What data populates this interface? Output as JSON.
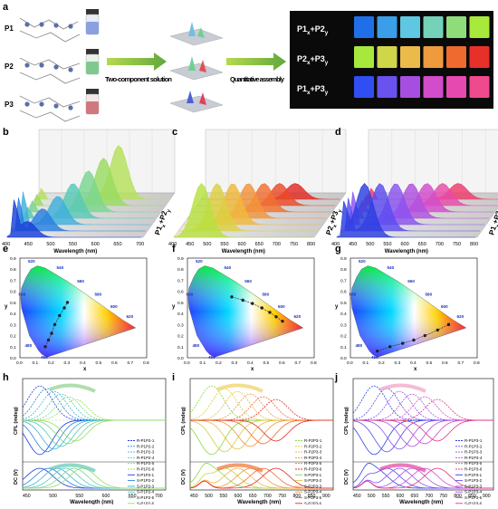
{
  "panel_letters": {
    "a": "a",
    "b": "b",
    "c": "c",
    "d": "d",
    "e": "e",
    "f": "f",
    "g": "g",
    "h": "h",
    "i": "i",
    "j": "j"
  },
  "panel_a": {
    "p1": "P1",
    "p2": "P2",
    "p3": "P3",
    "step1": "Two-component solution",
    "step2": "Quantitative assembly",
    "grid_rows": [
      {
        "label_main": "P1",
        "label_sub1": "x",
        "label_plus": "+P2",
        "label_sub2": "y",
        "colors": [
          "#1e6fe8",
          "#3a9ee8",
          "#5fc7e2",
          "#74d2b8",
          "#8fdc7a",
          "#a8ea3c"
        ]
      },
      {
        "label_main": "P2",
        "label_sub1": "x",
        "label_plus": "+P3",
        "label_sub2": "y",
        "colors": [
          "#a8e83c",
          "#cfd64a",
          "#eabb4a",
          "#f09a3e",
          "#ef6a2e",
          "#e8302a"
        ]
      },
      {
        "label_main": "P1",
        "label_sub1": "x",
        "label_plus": "+P3",
        "label_sub2": "y",
        "colors": [
          "#2f4ff2",
          "#6a52ef",
          "#a64ee0",
          "#d24ccc",
          "#e64ab0",
          "#f04a8e"
        ]
      }
    ]
  },
  "spectra_3d": [
    {
      "xlabel": "Wavelength (nm)",
      "ticks": [
        "400",
        "450",
        "500",
        "550",
        "600",
        "650",
        "700"
      ],
      "side_main": "P1",
      "side_sub1": "x",
      "side_plus": "+P2",
      "side_sub2": "y",
      "colors": [
        "#1a3fd8",
        "#2a7fe0",
        "#3fb0dc",
        "#58c9b6",
        "#7ad690",
        "#98dc60",
        "#b6e05a"
      ]
    },
    {
      "xlabel": "Wavelength (nm)",
      "ticks": [
        "400",
        "450",
        "500",
        "550",
        "600",
        "650",
        "700",
        "750",
        "800"
      ],
      "side_main": "P2",
      "side_sub1": "x",
      "side_plus": "+P3",
      "side_sub2": "y",
      "colors": [
        "#b8e040",
        "#dcd040",
        "#f0b83c",
        "#f4943a",
        "#f27030",
        "#ec4a2a",
        "#e02a24"
      ]
    },
    {
      "xlabel": "Wavelength (nm)",
      "ticks": [
        "400",
        "450",
        "500",
        "550",
        "600",
        "650",
        "700",
        "750",
        "800"
      ],
      "side_main": "P1",
      "side_sub1": "x",
      "side_plus": "+P3",
      "side_sub2": "y",
      "colors": [
        "#2a3ee0",
        "#5a4cf0",
        "#8a52f0",
        "#b050e0",
        "#d44ccc",
        "#e84aa8",
        "#ee3a6a"
      ]
    }
  ],
  "cie": {
    "xlabel": "x",
    "ylabel": "y",
    "xticks": [
      "0.0",
      "0.1",
      "0.2",
      "0.3",
      "0.4",
      "0.5",
      "0.6",
      "0.7",
      "0.8"
    ],
    "yticks": [
      "0.0",
      "0.1",
      "0.2",
      "0.3",
      "0.4",
      "0.5",
      "0.6",
      "0.7",
      "0.8",
      "0.9"
    ],
    "wl_labels": [
      "520",
      "540",
      "560",
      "580",
      "600",
      "620",
      "500",
      "480",
      "460"
    ],
    "paths": [
      [
        [
          0.16,
          0.1
        ],
        [
          0.18,
          0.16
        ],
        [
          0.2,
          0.22
        ],
        [
          0.22,
          0.3
        ],
        [
          0.25,
          0.38
        ],
        [
          0.28,
          0.45
        ],
        [
          0.3,
          0.5
        ]
      ],
      [
        [
          0.28,
          0.55
        ],
        [
          0.35,
          0.52
        ],
        [
          0.41,
          0.49
        ],
        [
          0.47,
          0.45
        ],
        [
          0.52,
          0.41
        ],
        [
          0.56,
          0.37
        ],
        [
          0.6,
          0.33
        ]
      ],
      [
        [
          0.17,
          0.06
        ],
        [
          0.25,
          0.1
        ],
        [
          0.33,
          0.13
        ],
        [
          0.4,
          0.16
        ],
        [
          0.47,
          0.2
        ],
        [
          0.55,
          0.25
        ],
        [
          0.62,
          0.3
        ]
      ]
    ]
  },
  "cpl_panels": [
    {
      "cpl_label": "CPL (mdeg)",
      "dc_label": "DC (V)",
      "xlabel": "Wavelength (nm)",
      "xticks": [
        "450",
        "500",
        "550",
        "600",
        "650",
        "700"
      ],
      "legend": [
        "R-P1P2-1",
        "R-P1P2-2",
        "R-P1P2-3",
        "R-P1P2-4",
        "R-P1P2-5",
        "R-P1P2-6",
        "S-P1P2-1",
        "S-P1P2-2",
        "S-P1P2-3",
        "S-P1P2-4",
        "S-P1P2-5",
        "S-P1P2-6"
      ],
      "colors": [
        "#1a3fd8",
        "#2a7fe0",
        "#3fb0dc",
        "#58c9b6",
        "#7ad690",
        "#98dc60",
        "#1a3fd8",
        "#2a7fe0",
        "#3fb0dc",
        "#58c9b6",
        "#7ad690",
        "#98dc60"
      ],
      "arrow_colors": [
        "#8fd08a",
        "#60c8b0"
      ]
    },
    {
      "cpl_label": "CPL (mdeg)",
      "dc_label": "DC (V)",
      "xlabel": "Wavelength (nm)",
      "xticks": [
        "450",
        "500",
        "550",
        "600",
        "650",
        "700",
        "750",
        "800",
        "850",
        "900"
      ],
      "legend": [
        "R-P2P3-1",
        "R-P2P3-2",
        "R-P2P3-3",
        "R-P2P3-4",
        "R-P2P3-5",
        "R-P2P3-6",
        "S-P2P3-1",
        "S-P2P3-2",
        "S-P2P3-3",
        "S-P2P3-4",
        "S-P2P3-5",
        "S-P2P3-6"
      ],
      "colors": [
        "#8ad840",
        "#cfd040",
        "#f0b83c",
        "#f4943a",
        "#ef6a2e",
        "#e02a24",
        "#8ad840",
        "#cfd040",
        "#f0b83c",
        "#f4943a",
        "#ef6a2e",
        "#e02a24"
      ],
      "arrow_colors": [
        "#f0d060",
        "#f07030"
      ]
    },
    {
      "cpl_label": "CPL (mdeg)",
      "dc_label": "DC (V)",
      "xlabel": "Wavelength (nm)",
      "xticks": [
        "450",
        "500",
        "550",
        "600",
        "650",
        "700",
        "750",
        "800",
        "850",
        "900"
      ],
      "legend": [
        "R-P1P3-1",
        "R-P1P3-2",
        "R-P1P3-3",
        "R-P1P3-4",
        "R-P1P3-5",
        "R-P1P3-6",
        "S-P1P3-1",
        "S-P1P3-2",
        "S-P1P3-3",
        "S-P1P3-4",
        "S-P1P3-5",
        "S-P1P3-6"
      ],
      "colors": [
        "#2a3ee0",
        "#5a4cf0",
        "#8a52f0",
        "#b050e0",
        "#d44ccc",
        "#e8307a",
        "#2a3ee0",
        "#5a4cf0",
        "#8a52f0",
        "#b050e0",
        "#d44ccc",
        "#e8307a"
      ],
      "arrow_colors": [
        "#f0a0c0",
        "#e040a0"
      ]
    }
  ]
}
